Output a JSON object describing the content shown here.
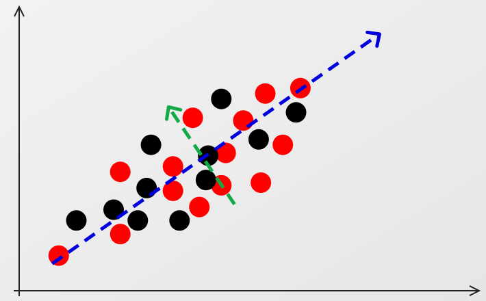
{
  "chart_data": {
    "type": "scatter",
    "title": "",
    "xlabel": "",
    "ylabel": "",
    "xlim": [
      0,
      10
    ],
    "ylim": [
      0,
      10
    ],
    "grid": false,
    "legend": "none",
    "background": "#eeeeee",
    "series": [
      {
        "color": "#ff0000",
        "points": [
          [
            0.9,
            1.3
          ],
          [
            2.3,
            2.1
          ],
          [
            2.3,
            4.4
          ],
          [
            3.5,
            4.6
          ],
          [
            3.5,
            3.7
          ],
          [
            3.95,
            6.4
          ],
          [
            4.1,
            3.1
          ],
          [
            4.6,
            3.9
          ],
          [
            4.7,
            5.1
          ],
          [
            5.1,
            6.3
          ],
          [
            5.5,
            4.0
          ],
          [
            5.6,
            7.3
          ],
          [
            6.0,
            5.4
          ],
          [
            6.4,
            7.5
          ]
        ]
      },
      {
        "color": "#000000",
        "points": [
          [
            1.3,
            2.6
          ],
          [
            2.15,
            3.0
          ],
          [
            2.7,
            2.6
          ],
          [
            2.9,
            3.8
          ],
          [
            3.0,
            5.4
          ],
          [
            3.65,
            2.6
          ],
          [
            4.25,
            4.1
          ],
          [
            4.3,
            5.0
          ],
          [
            4.6,
            7.1
          ],
          [
            5.45,
            5.6
          ],
          [
            6.3,
            6.6
          ]
        ]
      }
    ],
    "annotations": [
      {
        "kind": "dashed-arrow",
        "color": "#0000dd",
        "from": [
          0.75,
          1.0
        ],
        "to": [
          8.2,
          9.5
        ]
      },
      {
        "kind": "dashed-arrow",
        "color": "#11aa44",
        "from": [
          4.9,
          3.2
        ],
        "to": [
          3.4,
          6.8
        ]
      }
    ]
  }
}
